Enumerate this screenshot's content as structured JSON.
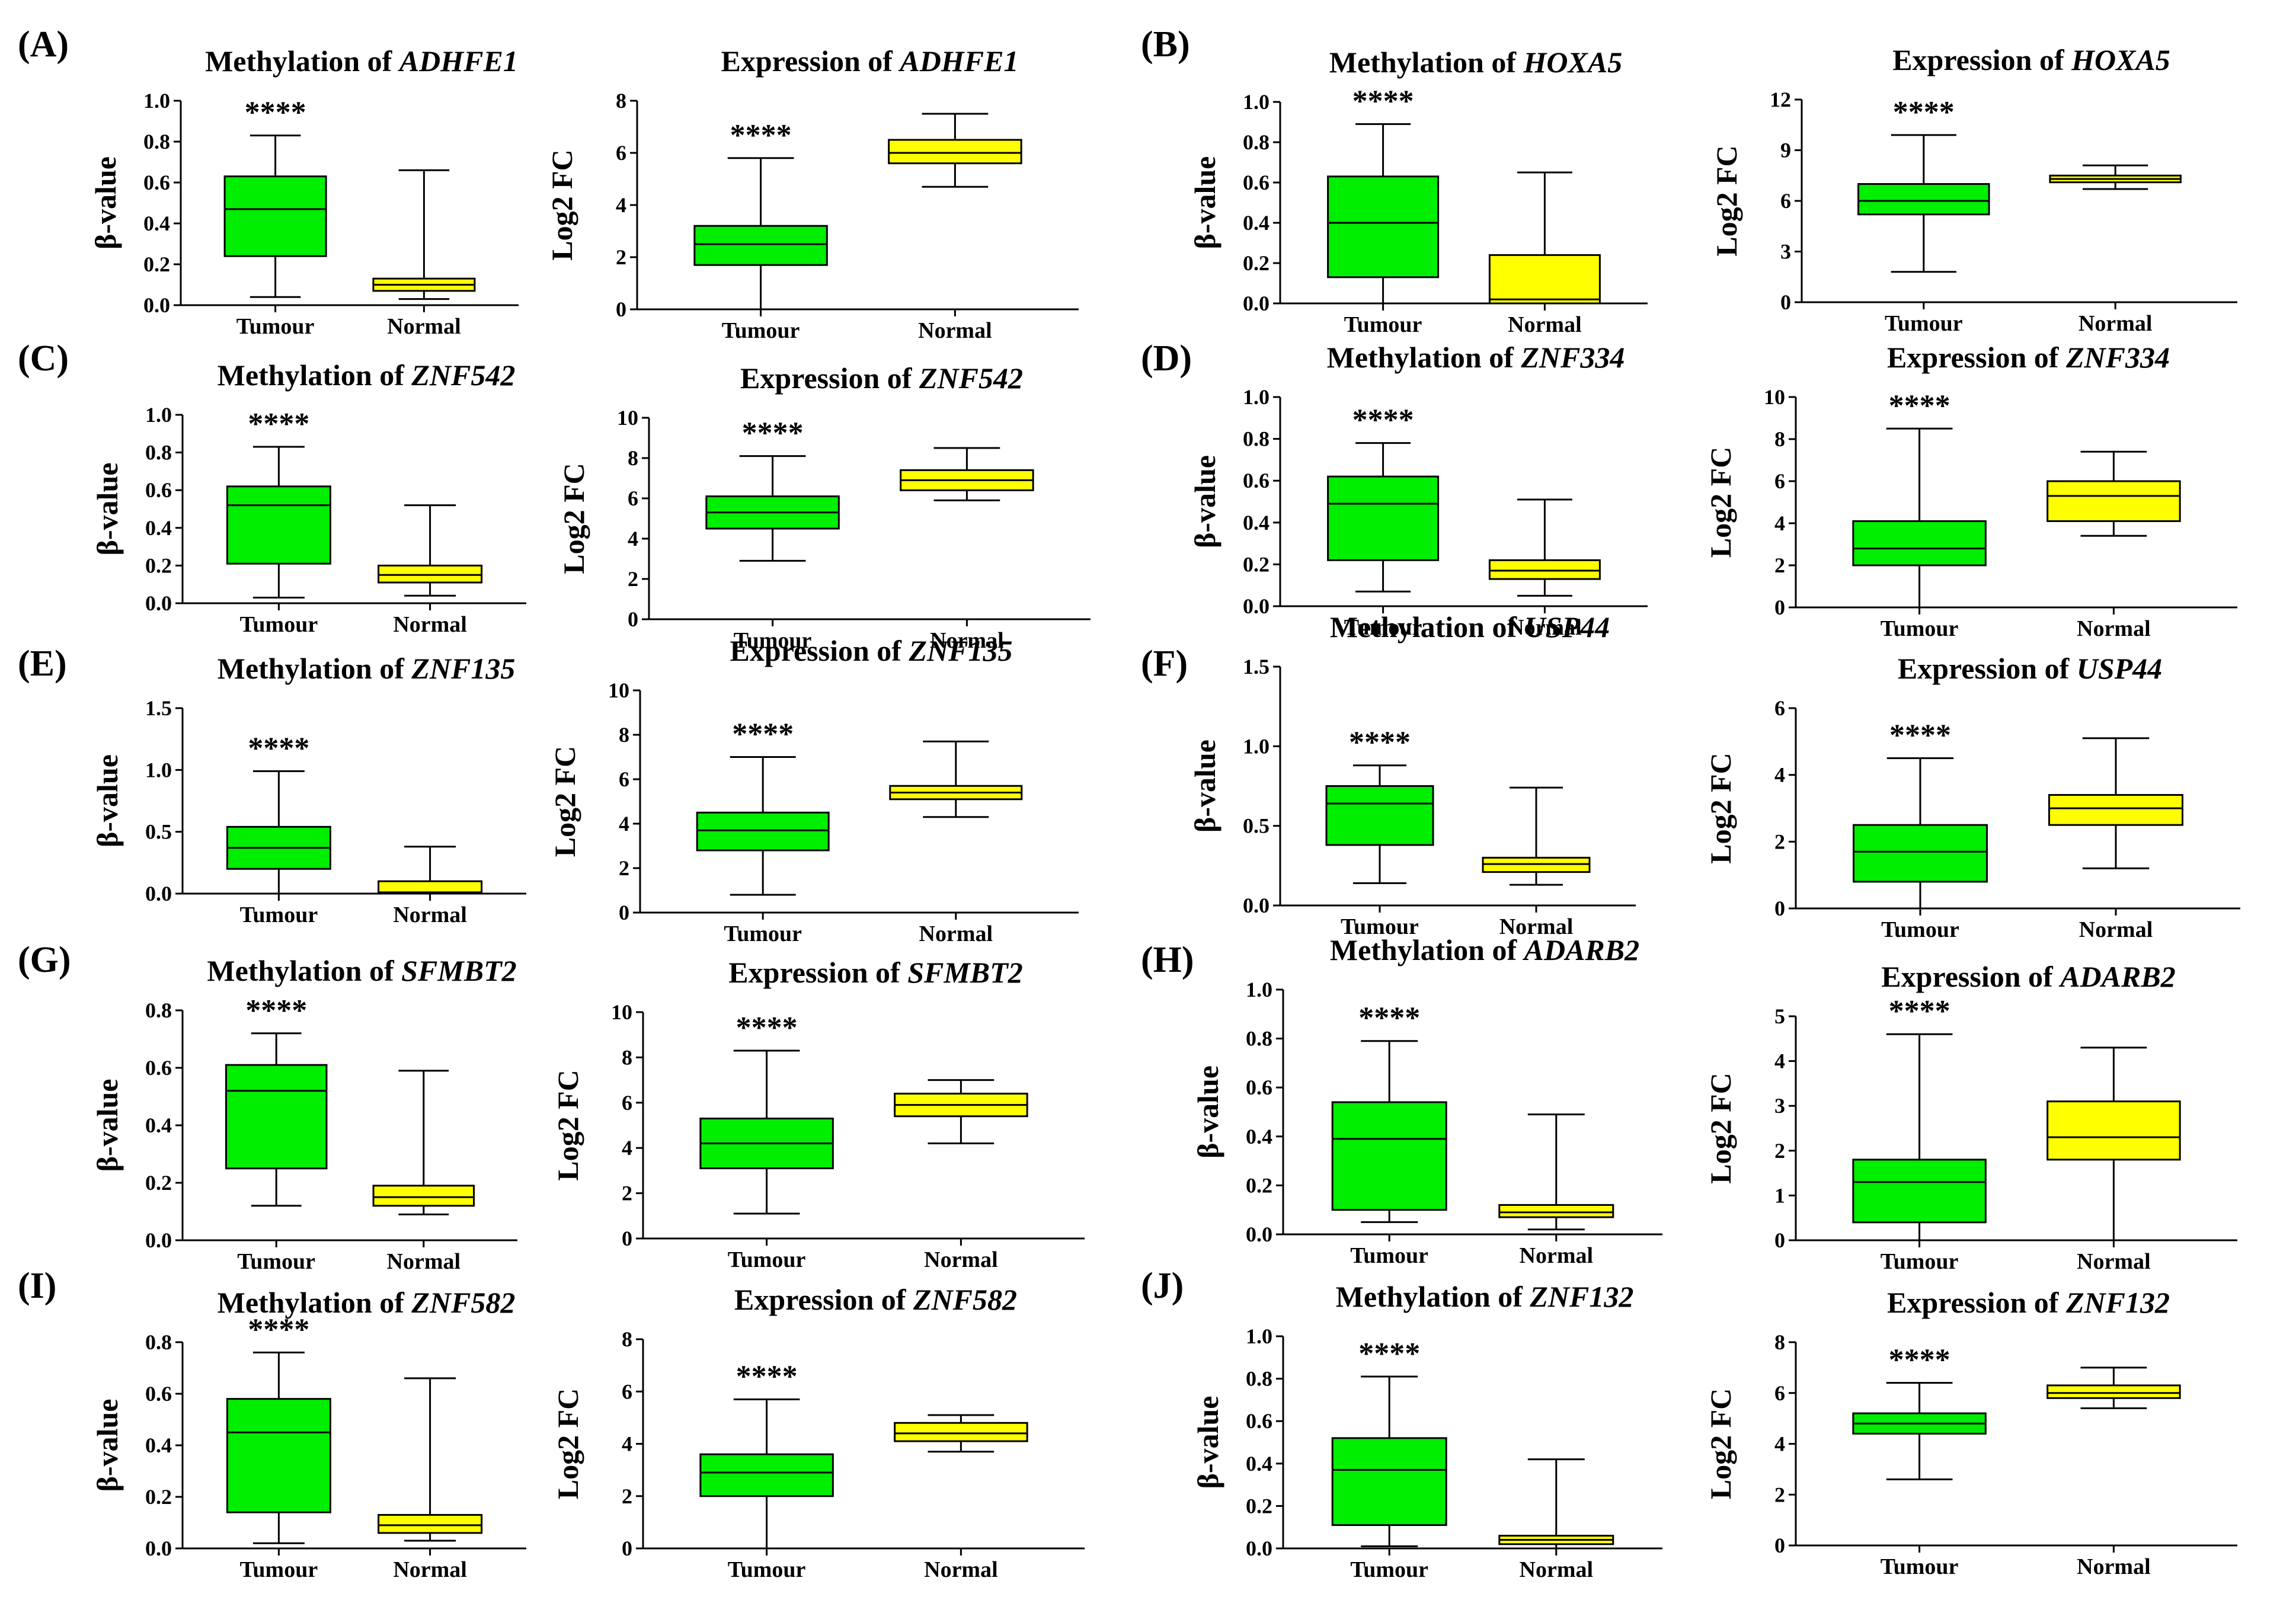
{
  "figure": {
    "colors": {
      "tumour": "#00ee00",
      "normal": "#ffff00",
      "stroke": "#000000",
      "background": "#ffffff"
    },
    "significance": "****",
    "panels": [
      {
        "letter": "(A)"
      },
      {
        "letter": "(B)"
      },
      {
        "letter": "(C)"
      },
      {
        "letter": "(D)"
      },
      {
        "letter": "(E)"
      },
      {
        "letter": "(F)"
      },
      {
        "letter": "(G)"
      },
      {
        "letter": "(H)"
      },
      {
        "letter": "(I)"
      },
      {
        "letter": "(J)"
      }
    ]
  },
  "chart_data": [
    {
      "type": "box",
      "panel": "A",
      "title_prefix": "Methylation of",
      "gene": "ADHFE1",
      "ylabel": "β-value",
      "categories": [
        "Tumour",
        "Normal"
      ],
      "ylim": [
        0,
        1.0
      ],
      "yticks": [
        "0.0",
        "0.2",
        "0.4",
        "0.6",
        "0.8",
        "1.0"
      ],
      "significance": "****",
      "boxes": [
        {
          "min": 0.04,
          "q1": 0.24,
          "median": 0.47,
          "q3": 0.63,
          "max": 0.83
        },
        {
          "min": 0.03,
          "q1": 0.07,
          "median": 0.1,
          "q3": 0.13,
          "max": 0.66
        }
      ]
    },
    {
      "type": "box",
      "panel": "A",
      "title_prefix": "Expression of",
      "gene": "ADHFE1",
      "ylabel": "Log2 FC",
      "categories": [
        "Tumour",
        "Normal"
      ],
      "ylim": [
        0,
        8
      ],
      "yticks": [
        "0",
        "2",
        "4",
        "6",
        "8"
      ],
      "significance": "****",
      "boxes": [
        {
          "min": 0,
          "q1": 1.7,
          "median": 2.5,
          "q3": 3.2,
          "max": 5.8
        },
        {
          "min": 4.7,
          "q1": 5.6,
          "median": 6.0,
          "q3": 6.5,
          "max": 7.5
        }
      ]
    },
    {
      "type": "box",
      "panel": "B",
      "title_prefix": "Methylation of",
      "gene": "HOXA5",
      "ylabel": "β-value",
      "categories": [
        "Tumour",
        "Normal"
      ],
      "ylim": [
        0,
        1.0
      ],
      "yticks": [
        "0.0",
        "0.2",
        "0.4",
        "0.6",
        "0.8",
        "1.0"
      ],
      "significance": "****",
      "boxes": [
        {
          "min": 0.0,
          "q1": 0.13,
          "median": 0.4,
          "q3": 0.63,
          "max": 0.89
        },
        {
          "min": 0.0,
          "q1": 0.0,
          "median": 0.02,
          "q3": 0.24,
          "max": 0.65
        }
      ]
    },
    {
      "type": "box",
      "panel": "B",
      "title_prefix": "Expression of",
      "gene": "HOXA5",
      "ylabel": "Log2 FC",
      "categories": [
        "Tumour",
        "Normal"
      ],
      "ylim": [
        0,
        12
      ],
      "yticks": [
        "0",
        "3",
        "6",
        "9",
        "12"
      ],
      "significance": "****",
      "boxes": [
        {
          "min": 1.8,
          "q1": 5.2,
          "median": 6.0,
          "q3": 7.0,
          "max": 9.9
        },
        {
          "min": 6.7,
          "q1": 7.1,
          "median": 7.3,
          "q3": 7.5,
          "max": 8.1
        }
      ]
    },
    {
      "type": "box",
      "panel": "C",
      "title_prefix": "Methylation of",
      "gene": "ZNF542",
      "ylabel": "β-value",
      "categories": [
        "Tumour",
        "Normal"
      ],
      "ylim": [
        0,
        1.0
      ],
      "yticks": [
        "0.0",
        "0.2",
        "0.4",
        "0.6",
        "0.8",
        "1.0"
      ],
      "significance": "****",
      "boxes": [
        {
          "min": 0.03,
          "q1": 0.21,
          "median": 0.52,
          "q3": 0.62,
          "max": 0.83
        },
        {
          "min": 0.04,
          "q1": 0.11,
          "median": 0.15,
          "q3": 0.2,
          "max": 0.52
        }
      ]
    },
    {
      "type": "box",
      "panel": "C",
      "title_prefix": "Expression of",
      "gene": "ZNF542",
      "ylabel": "Log2 FC",
      "categories": [
        "Tumour",
        "Normal"
      ],
      "ylim": [
        0,
        10
      ],
      "yticks": [
        "0",
        "2",
        "4",
        "6",
        "8",
        "10"
      ],
      "significance": "****",
      "boxes": [
        {
          "min": 2.9,
          "q1": 4.5,
          "median": 5.3,
          "q3": 6.1,
          "max": 8.1
        },
        {
          "min": 5.9,
          "q1": 6.4,
          "median": 6.9,
          "q3": 7.4,
          "max": 8.5
        }
      ]
    },
    {
      "type": "box",
      "panel": "D",
      "title_prefix": "Methylation of",
      "gene": "ZNF334",
      "ylabel": "β-value",
      "categories": [
        "Tumour",
        "Normal"
      ],
      "ylim": [
        0,
        1.0
      ],
      "yticks": [
        "0.0",
        "0.2",
        "0.4",
        "0.6",
        "0.8",
        "1.0"
      ],
      "significance": "****",
      "boxes": [
        {
          "min": 0.07,
          "q1": 0.22,
          "median": 0.49,
          "q3": 0.62,
          "max": 0.78
        },
        {
          "min": 0.05,
          "q1": 0.13,
          "median": 0.17,
          "q3": 0.22,
          "max": 0.51
        }
      ]
    },
    {
      "type": "box",
      "panel": "D",
      "title_prefix": "Expression of",
      "gene": "ZNF334",
      "ylabel": "Log2 FC",
      "categories": [
        "Tumour",
        "Normal"
      ],
      "ylim": [
        0,
        10
      ],
      "yticks": [
        "0",
        "2",
        "4",
        "6",
        "8",
        "10"
      ],
      "significance": "****",
      "boxes": [
        {
          "min": 0,
          "q1": 2.0,
          "median": 2.8,
          "q3": 4.1,
          "max": 8.5
        },
        {
          "min": 3.4,
          "q1": 4.1,
          "median": 5.3,
          "q3": 6.0,
          "max": 7.4
        }
      ]
    },
    {
      "type": "box",
      "panel": "E",
      "title_prefix": "Methylation of",
      "gene": "ZNF135",
      "ylabel": "β-value",
      "categories": [
        "Tumour",
        "Normal"
      ],
      "ylim": [
        0,
        1.5
      ],
      "yticks": [
        "0.0",
        "0.5",
        "1.0",
        "1.5"
      ],
      "significance": "****",
      "boxes": [
        {
          "min": 0.0,
          "q1": 0.2,
          "median": 0.37,
          "q3": 0.54,
          "max": 0.99
        },
        {
          "min": 0.0,
          "q1": 0.0,
          "median": 0.01,
          "q3": 0.1,
          "max": 0.38
        }
      ]
    },
    {
      "type": "box",
      "panel": "E",
      "title_prefix": "Expression of",
      "gene": "ZNF135",
      "ylabel": "Log2 FC",
      "categories": [
        "Tumour",
        "Normal"
      ],
      "ylim": [
        0,
        10
      ],
      "yticks": [
        "0",
        "2",
        "4",
        "6",
        "8",
        "10"
      ],
      "significance": "****",
      "boxes": [
        {
          "min": 0.8,
          "q1": 2.8,
          "median": 3.7,
          "q3": 4.5,
          "max": 7.0
        },
        {
          "min": 4.3,
          "q1": 5.1,
          "median": 5.4,
          "q3": 5.7,
          "max": 7.7
        }
      ]
    },
    {
      "type": "box",
      "panel": "F",
      "title_prefix": "Methylation of",
      "gene": "USP44",
      "ylabel": "β-value",
      "categories": [
        "Tumour",
        "Normal"
      ],
      "ylim": [
        0,
        1.5
      ],
      "yticks": [
        "0.0",
        "0.5",
        "1.0",
        "1.5"
      ],
      "significance": "****",
      "boxes": [
        {
          "min": 0.14,
          "q1": 0.38,
          "median": 0.64,
          "q3": 0.75,
          "max": 0.88
        },
        {
          "min": 0.13,
          "q1": 0.21,
          "median": 0.26,
          "q3": 0.3,
          "max": 0.74
        }
      ]
    },
    {
      "type": "box",
      "panel": "F",
      "title_prefix": "Expression of",
      "gene": "USP44",
      "ylabel": "Log2 FC",
      "categories": [
        "Tumour",
        "Normal"
      ],
      "ylim": [
        0,
        6
      ],
      "yticks": [
        "0",
        "2",
        "4",
        "6"
      ],
      "significance": "****",
      "boxes": [
        {
          "min": 0,
          "q1": 0.8,
          "median": 1.7,
          "q3": 2.5,
          "max": 4.5
        },
        {
          "min": 1.2,
          "q1": 2.5,
          "median": 3.0,
          "q3": 3.4,
          "max": 5.1
        }
      ]
    },
    {
      "type": "box",
      "panel": "G",
      "title_prefix": "Methylation of",
      "gene": "SFMBT2",
      "ylabel": "β-value",
      "categories": [
        "Tumour",
        "Normal"
      ],
      "ylim": [
        0,
        0.8
      ],
      "yticks": [
        "0.0",
        "0.2",
        "0.4",
        "0.6",
        "0.8"
      ],
      "significance": "****",
      "boxes": [
        {
          "min": 0.12,
          "q1": 0.25,
          "median": 0.52,
          "q3": 0.61,
          "max": 0.72
        },
        {
          "min": 0.09,
          "q1": 0.12,
          "median": 0.15,
          "q3": 0.19,
          "max": 0.59
        }
      ]
    },
    {
      "type": "box",
      "panel": "G",
      "title_prefix": "Expression of",
      "gene": "SFMBT2",
      "ylabel": "Log2 FC",
      "categories": [
        "Tumour",
        "Normal"
      ],
      "ylim": [
        0,
        10
      ],
      "yticks": [
        "0",
        "2",
        "4",
        "6",
        "8",
        "10"
      ],
      "significance": "****",
      "boxes": [
        {
          "min": 1.1,
          "q1": 3.1,
          "median": 4.2,
          "q3": 5.3,
          "max": 8.3
        },
        {
          "min": 4.2,
          "q1": 5.4,
          "median": 5.9,
          "q3": 6.4,
          "max": 7.0
        }
      ]
    },
    {
      "type": "box",
      "panel": "H",
      "title_prefix": "Methylation of",
      "gene": "ADARB2",
      "ylabel": "β-value",
      "categories": [
        "Tumour",
        "Normal"
      ],
      "ylim": [
        0,
        1.0
      ],
      "yticks": [
        "0.0",
        "0.2",
        "0.4",
        "0.6",
        "0.8",
        "1.0"
      ],
      "significance": "****",
      "boxes": [
        {
          "min": 0.05,
          "q1": 0.1,
          "median": 0.39,
          "q3": 0.54,
          "max": 0.79
        },
        {
          "min": 0.02,
          "q1": 0.07,
          "median": 0.09,
          "q3": 0.12,
          "max": 0.49
        }
      ]
    },
    {
      "type": "box",
      "panel": "H",
      "title_prefix": "Expression of",
      "gene": "ADARB2",
      "ylabel": "Log2 FC",
      "categories": [
        "Tumour",
        "Normal"
      ],
      "ylim": [
        0,
        5
      ],
      "yticks": [
        "0",
        "1",
        "2",
        "3",
        "4",
        "5"
      ],
      "significance": "****",
      "boxes": [
        {
          "min": 0,
          "q1": 0.4,
          "median": 1.3,
          "q3": 1.8,
          "max": 4.6
        },
        {
          "min": 0,
          "q1": 1.8,
          "median": 2.3,
          "q3": 3.1,
          "max": 4.3
        }
      ]
    },
    {
      "type": "box",
      "panel": "I",
      "title_prefix": "Methylation of",
      "gene": "ZNF582",
      "ylabel": "β-value",
      "categories": [
        "Tumour",
        "Normal"
      ],
      "ylim": [
        0,
        0.8
      ],
      "yticks": [
        "0.0",
        "0.2",
        "0.4",
        "0.6",
        "0.8"
      ],
      "significance": "****",
      "boxes": [
        {
          "min": 0.02,
          "q1": 0.14,
          "median": 0.45,
          "q3": 0.58,
          "max": 0.76
        },
        {
          "min": 0.03,
          "q1": 0.06,
          "median": 0.09,
          "q3": 0.13,
          "max": 0.66
        }
      ]
    },
    {
      "type": "box",
      "panel": "I",
      "title_prefix": "Expression of",
      "gene": "ZNF582",
      "ylabel": "Log2 FC",
      "categories": [
        "Tumour",
        "Normal"
      ],
      "ylim": [
        0,
        8
      ],
      "yticks": [
        "0",
        "2",
        "4",
        "6",
        "8"
      ],
      "significance": "****",
      "boxes": [
        {
          "min": 0,
          "q1": 2.0,
          "median": 2.9,
          "q3": 3.6,
          "max": 5.7
        },
        {
          "min": 3.7,
          "q1": 4.1,
          "median": 4.4,
          "q3": 4.8,
          "max": 5.1
        }
      ]
    },
    {
      "type": "box",
      "panel": "J",
      "title_prefix": "Methylation of",
      "gene": "ZNF132",
      "ylabel": "β-value",
      "categories": [
        "Tumour",
        "Normal"
      ],
      "ylim": [
        0,
        1.0
      ],
      "yticks": [
        "0.0",
        "0.2",
        "0.4",
        "0.6",
        "0.8",
        "1.0"
      ],
      "significance": "****",
      "boxes": [
        {
          "min": 0.01,
          "q1": 0.11,
          "median": 0.37,
          "q3": 0.52,
          "max": 0.81
        },
        {
          "min": 0.0,
          "q1": 0.02,
          "median": 0.04,
          "q3": 0.06,
          "max": 0.42
        }
      ]
    },
    {
      "type": "box",
      "panel": "J",
      "title_prefix": "Expression of",
      "gene": "ZNF132",
      "ylabel": "Log2 FC",
      "categories": [
        "Tumour",
        "Normal"
      ],
      "ylim": [
        0,
        8
      ],
      "yticks": [
        "0",
        "2",
        "4",
        "6",
        "8"
      ],
      "significance": "****",
      "boxes": [
        {
          "min": 2.6,
          "q1": 4.4,
          "median": 4.8,
          "q3": 5.2,
          "max": 6.4
        },
        {
          "min": 5.4,
          "q1": 5.8,
          "median": 6.0,
          "q3": 6.3,
          "max": 7.0
        }
      ]
    }
  ]
}
